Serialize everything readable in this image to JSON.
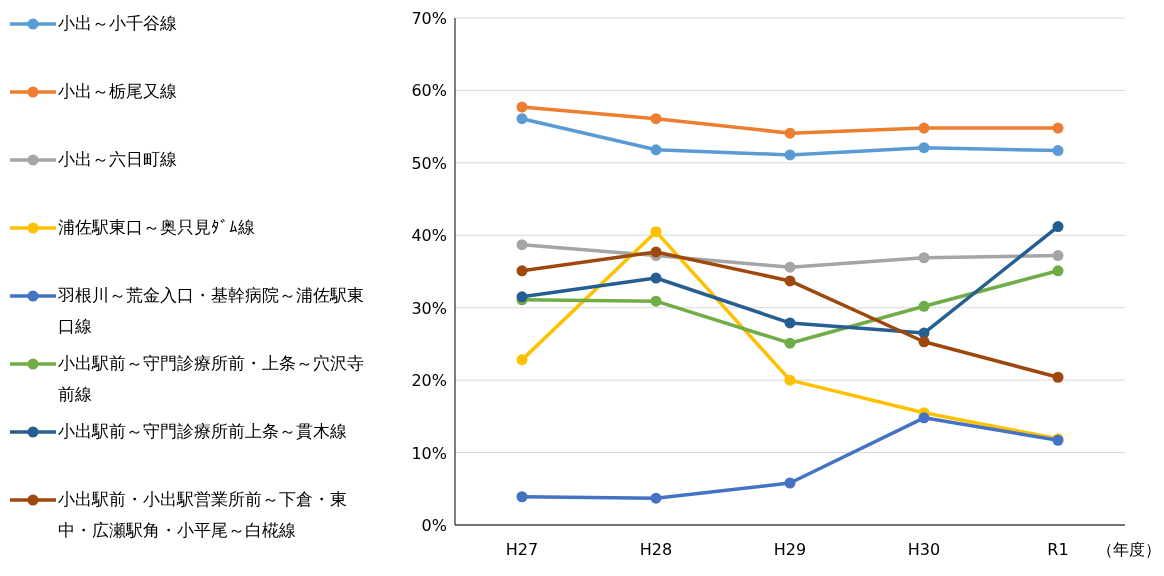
{
  "chart_data": {
    "type": "line",
    "xlabel": "（年度）",
    "categories": [
      "H27",
      "H28",
      "H29",
      "H30",
      "R1"
    ],
    "ylim": [
      0,
      0.7
    ],
    "yticks": [
      {
        "value": 0,
        "label": "0%"
      },
      {
        "value": 0.1,
        "label": "10%"
      },
      {
        "value": 0.2,
        "label": "20%"
      },
      {
        "value": 0.3,
        "label": "30%"
      },
      {
        "value": 0.4,
        "label": "40%"
      },
      {
        "value": 0.5,
        "label": "50%"
      },
      {
        "value": 0.6,
        "label": "60%"
      },
      {
        "value": 0.7,
        "label": "70%"
      }
    ],
    "grid": "y",
    "legend": "left",
    "marker": "circle",
    "line_style": "solid",
    "series": [
      {
        "name": "小出～小千谷線",
        "color": "#5b9bd5",
        "values": [
          0.561,
          0.518,
          0.511,
          0.521,
          0.517
        ]
      },
      {
        "name": "小出～栃尾又線",
        "color": "#ed7d31",
        "values": [
          0.577,
          0.561,
          0.541,
          0.548,
          0.548
        ]
      },
      {
        "name": "小出～六日町線",
        "color": "#a5a5a5",
        "values": [
          0.387,
          0.372,
          0.356,
          0.369,
          0.372
        ]
      },
      {
        "name": "浦佐駅東口～奥只見ﾀﾞﾑ線",
        "color": "#ffc000",
        "values": [
          0.228,
          0.405,
          0.2,
          0.155,
          0.119
        ]
      },
      {
        "name": "羽根川～荒金入口・基幹病院～浦佐駅東口線",
        "color": "#4472c4",
        "values": [
          0.039,
          0.037,
          0.058,
          0.148,
          0.117
        ]
      },
      {
        "name": "小出駅前～守門診療所前・上条～穴沢寺前線",
        "color": "#70ad47",
        "values": [
          0.311,
          0.309,
          0.251,
          0.302,
          0.351
        ]
      },
      {
        "name": "小出駅前～守門診療所前上条～貫木線",
        "color": "#255e91",
        "values": [
          0.315,
          0.341,
          0.279,
          0.265,
          0.412
        ]
      },
      {
        "name": "小出駅前・小出駅営業所前～下倉・東中・広瀬駅角・小平尾～白椛線",
        "color": "#9e480e",
        "values": [
          0.351,
          0.377,
          0.337,
          0.253,
          0.204
        ]
      }
    ]
  }
}
